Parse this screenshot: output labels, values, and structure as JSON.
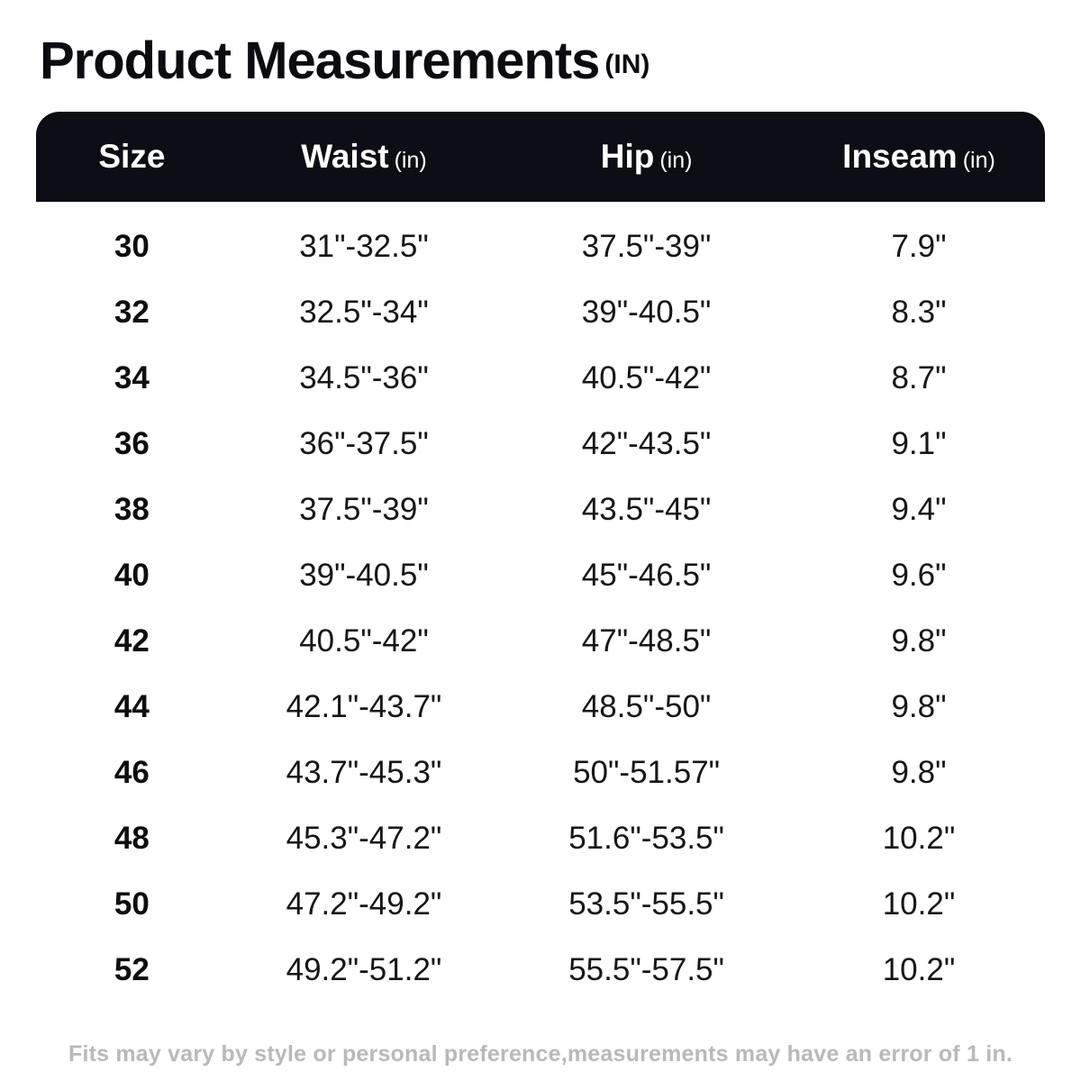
{
  "page": {
    "title": "Product Measurements",
    "title_unit": "(IN)",
    "footnote": "Fits may vary by style or personal preference,measurements may have an error of 1 in."
  },
  "chart_data": {
    "type": "table",
    "title": "Product Measurements (IN)",
    "columns": [
      {
        "label": "Size",
        "unit": ""
      },
      {
        "label": "Waist",
        "unit": "(in)"
      },
      {
        "label": "Hip",
        "unit": "(in)"
      },
      {
        "label": "Inseam",
        "unit": "(in)"
      }
    ],
    "rows": [
      [
        "30",
        "31\"-32.5\"",
        "37.5\"-39\"",
        "7.9\""
      ],
      [
        "32",
        "32.5\"-34\"",
        "39\"-40.5\"",
        "8.3\""
      ],
      [
        "34",
        "34.5\"-36\"",
        "40.5\"-42\"",
        "8.7\""
      ],
      [
        "36",
        "36\"-37.5\"",
        "42\"-43.5\"",
        "9.1\""
      ],
      [
        "38",
        "37.5\"-39\"",
        "43.5\"-45\"",
        "9.4\""
      ],
      [
        "40",
        "39\"-40.5\"",
        "45\"-46.5\"",
        "9.6\""
      ],
      [
        "42",
        "40.5\"-42\"",
        "47\"-48.5\"",
        "9.8\""
      ],
      [
        "44",
        "42.1\"-43.7\"",
        "48.5\"-50\"",
        "9.8\""
      ],
      [
        "46",
        "43.7\"-45.3\"",
        "50\"-51.57\"",
        "9.8\""
      ],
      [
        "48",
        "45.3\"-47.2\"",
        "51.6\"-53.5\"",
        "10.2\""
      ],
      [
        "50",
        "47.2\"-49.2\"",
        "53.5\"-55.5\"",
        "10.2\""
      ],
      [
        "52",
        "49.2\"-51.2\"",
        "55.5\"-57.5\"",
        "10.2\""
      ]
    ],
    "header_bg_color": "#0d0d15",
    "header_text_color": "#ffffff",
    "body_bg_color": "#ffffff",
    "footnote_color": "#b9b9b9"
  }
}
